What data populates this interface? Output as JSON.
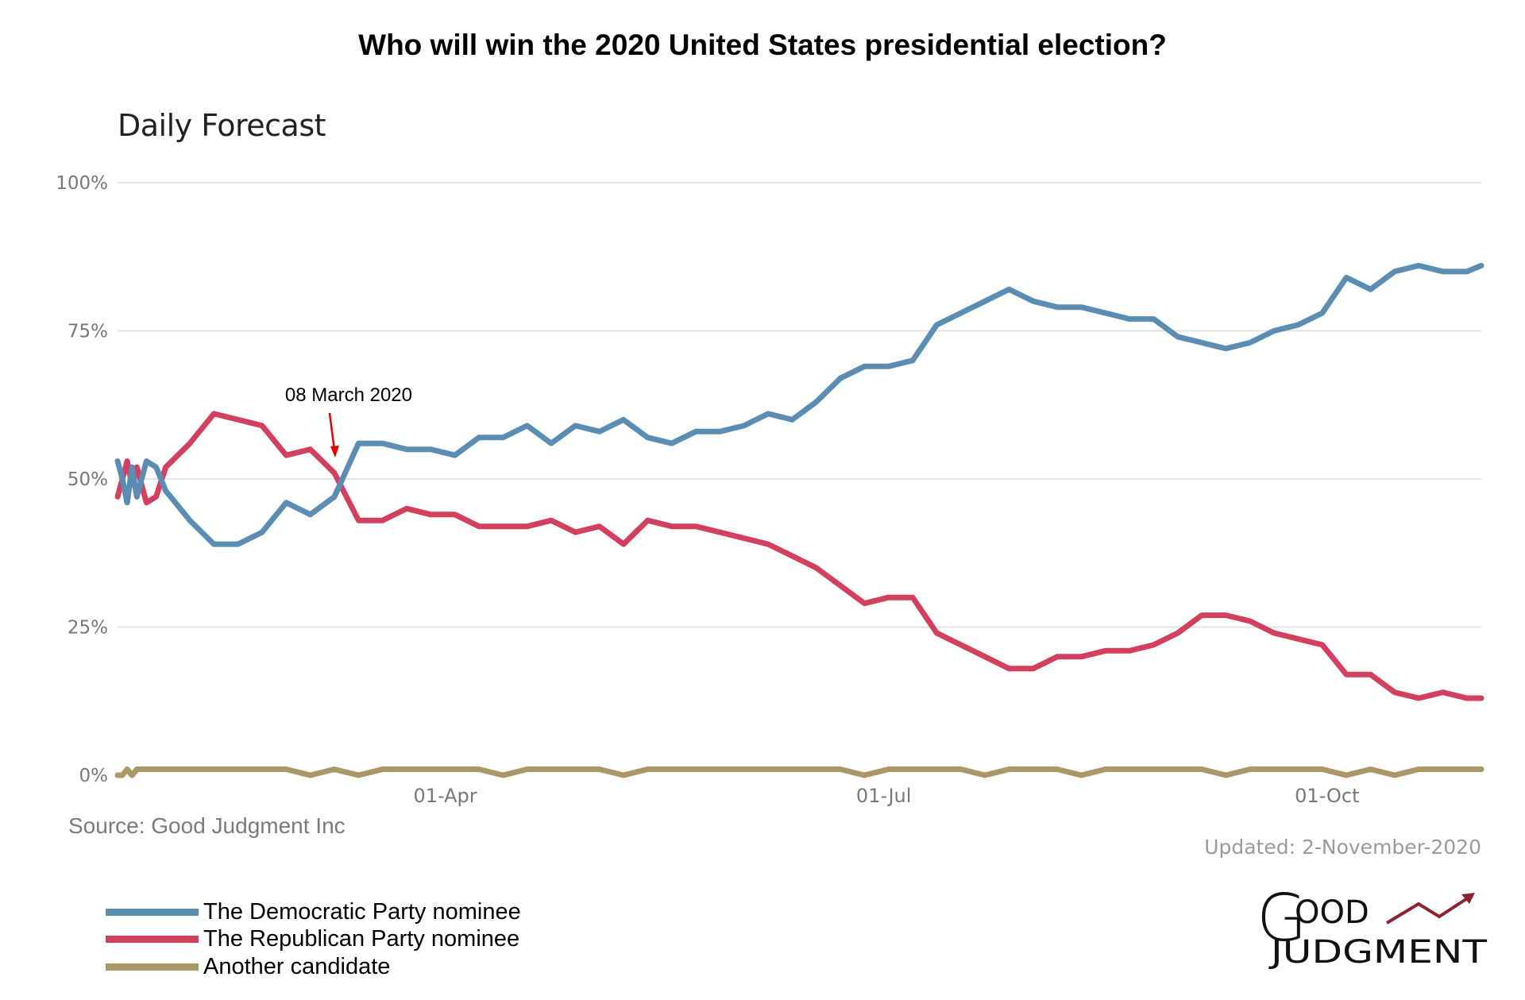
{
  "chart_data": {
    "type": "line",
    "title": "Who will win the 2020 United States presidential election?",
    "subtitle": "Daily Forecast",
    "xlabel": "",
    "ylabel": "",
    "ylim": [
      0,
      100
    ],
    "xlim": [
      "2020-01-24",
      "2020-11-02"
    ],
    "yticks": [
      "0%",
      "25%",
      "50%",
      "75%",
      "100%"
    ],
    "ytick_values": [
      0,
      25,
      50,
      75,
      100
    ],
    "xticks": [
      "01-Apr",
      "01-Jul",
      "01-Oct"
    ],
    "xtick_values": [
      "2020-04-01",
      "2020-07-01",
      "2020-10-01"
    ],
    "grid": "horizontal",
    "legend_position": "bottom-left",
    "x": [
      "2020-01-24",
      "2020-01-25",
      "2020-01-26",
      "2020-01-27",
      "2020-01-28",
      "2020-01-30",
      "2020-02-01",
      "2020-02-03",
      "2020-02-08",
      "2020-02-13",
      "2020-02-18",
      "2020-02-23",
      "2020-02-28",
      "2020-03-04",
      "2020-03-09",
      "2020-03-14",
      "2020-03-19",
      "2020-03-24",
      "2020-03-29",
      "2020-04-03",
      "2020-04-08",
      "2020-04-13",
      "2020-04-18",
      "2020-04-23",
      "2020-04-28",
      "2020-05-03",
      "2020-05-08",
      "2020-05-13",
      "2020-05-18",
      "2020-05-23",
      "2020-05-28",
      "2020-06-02",
      "2020-06-07",
      "2020-06-12",
      "2020-06-17",
      "2020-06-22",
      "2020-06-27",
      "2020-07-02",
      "2020-07-07",
      "2020-07-12",
      "2020-07-17",
      "2020-07-22",
      "2020-07-27",
      "2020-08-01",
      "2020-08-06",
      "2020-08-11",
      "2020-08-16",
      "2020-08-21",
      "2020-08-26",
      "2020-08-31",
      "2020-09-05",
      "2020-09-10",
      "2020-09-15",
      "2020-09-20",
      "2020-09-25",
      "2020-09-30",
      "2020-10-05",
      "2020-10-10",
      "2020-10-15",
      "2020-10-20",
      "2020-10-25",
      "2020-10-30",
      "2020-11-02"
    ],
    "series": [
      {
        "name": "The Democratic Party nominee",
        "color": "#5b8db3",
        "values": [
          53,
          50,
          46,
          52,
          47,
          53,
          52,
          48,
          43,
          39,
          39,
          41,
          46,
          44,
          47,
          56,
          56,
          55,
          55,
          54,
          57,
          57,
          59,
          56,
          59,
          58,
          60,
          57,
          56,
          58,
          58,
          59,
          61,
          60,
          63,
          67,
          69,
          69,
          70,
          76,
          78,
          80,
          82,
          80,
          79,
          79,
          78,
          77,
          77,
          74,
          73,
          72,
          73,
          75,
          76,
          78,
          84,
          82,
          85,
          86,
          85,
          85,
          86
        ]
      },
      {
        "name": "The Republican Party nominee",
        "color": "#d2405e",
        "values": [
          47,
          50,
          53,
          49,
          52,
          46,
          47,
          52,
          56,
          61,
          60,
          59,
          54,
          55,
          51,
          43,
          43,
          45,
          44,
          44,
          42,
          42,
          42,
          43,
          41,
          42,
          39,
          43,
          42,
          42,
          41,
          40,
          39,
          37,
          35,
          32,
          29,
          30,
          30,
          24,
          22,
          20,
          18,
          18,
          20,
          20,
          21,
          21,
          22,
          24,
          27,
          27,
          26,
          24,
          23,
          22,
          17,
          17,
          14,
          13,
          14,
          13,
          13
        ]
      },
      {
        "name": "Another candidate",
        "color": "#a99768",
        "values": [
          0,
          0,
          1,
          0,
          1,
          1,
          1,
          1,
          1,
          1,
          1,
          1,
          1,
          0,
          1,
          0,
          1,
          1,
          1,
          1,
          1,
          0,
          1,
          1,
          1,
          1,
          0,
          1,
          1,
          1,
          1,
          1,
          1,
          1,
          1,
          1,
          0,
          1,
          1,
          1,
          1,
          0,
          1,
          1,
          1,
          0,
          1,
          1,
          1,
          1,
          1,
          0,
          1,
          1,
          1,
          1,
          0,
          1,
          0,
          1,
          1,
          1,
          1
        ]
      }
    ],
    "annotation": {
      "label": "08 March 2020",
      "date": "2020-03-08",
      "color": "#e00000"
    }
  },
  "source": "Source: Good Judgment Inc",
  "updated": "Updated: 2-November-2020",
  "logo": {
    "line1": "GOOD",
    "line2": "JUDGMENT",
    "arrow_color": "#8b2332"
  }
}
